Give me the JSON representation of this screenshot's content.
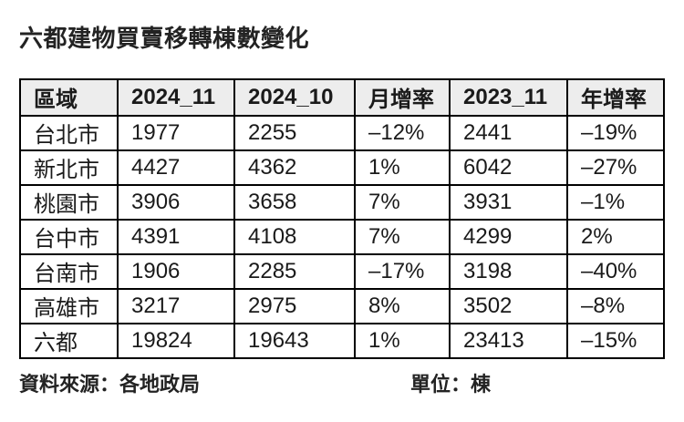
{
  "title": "六都建物買賣移轉棟數變化",
  "table": {
    "headers": [
      "區域",
      "2024_11",
      "2024_10",
      "月增率",
      "2023_11",
      "年增率"
    ],
    "rows": [
      [
        "台北市",
        "1977",
        "2255",
        "–12%",
        "2441",
        "–19%"
      ],
      [
        "新北市",
        "4427",
        "4362",
        "1%",
        "6042",
        "–27%"
      ],
      [
        "桃園市",
        "3906",
        "3658",
        "7%",
        "3931",
        "–1%"
      ],
      [
        "台中市",
        "4391",
        "4108",
        "7%",
        "4299",
        "2%"
      ],
      [
        "台南市",
        "1906",
        "2285",
        "–17%",
        "3198",
        "–40%"
      ],
      [
        "高雄市",
        "3217",
        "2975",
        "8%",
        "3502",
        "–8%"
      ],
      [
        "六都",
        "19824",
        "19643",
        "1%",
        "23413",
        "–15%"
      ]
    ]
  },
  "footer": {
    "source": "資料來源：各地政局",
    "unit": "單位：棟"
  },
  "colors": {
    "page_bg": "#ffffff",
    "header_bg": "#ededed",
    "border": "#000000",
    "text": "#1a1a1a"
  },
  "chart_data": {
    "type": "table",
    "title": "六都建物買賣移轉棟數變化",
    "columns": [
      "區域",
      "2024_11",
      "2024_10",
      "月增率",
      "2023_11",
      "年增率"
    ],
    "rows": [
      {
        "區域": "台北市",
        "2024_11": 1977,
        "2024_10": 2255,
        "月增率": "–12%",
        "2023_11": 2441,
        "年增率": "–19%"
      },
      {
        "區域": "新北市",
        "2024_11": 4427,
        "2024_10": 4362,
        "月增率": "1%",
        "2023_11": 6042,
        "年增率": "–27%"
      },
      {
        "區域": "桃園市",
        "2024_11": 3906,
        "2024_10": 3658,
        "月增率": "7%",
        "2023_11": 3931,
        "年增率": "–1%"
      },
      {
        "區域": "台中市",
        "2024_11": 4391,
        "2024_10": 4108,
        "月增率": "7%",
        "2023_11": 4299,
        "年增率": "2%"
      },
      {
        "區域": "台南市",
        "2024_11": 1906,
        "2024_10": 2285,
        "月增率": "–17%",
        "2023_11": 3198,
        "年增率": "–40%"
      },
      {
        "區域": "高雄市",
        "2024_11": 3217,
        "2024_10": 2975,
        "月增率": "8%",
        "2023_11": 3502,
        "年增率": "–8%"
      },
      {
        "區域": "六都",
        "2024_11": 19824,
        "2024_10": 19643,
        "月增率": "1%",
        "2023_11": 23413,
        "年增率": "–15%"
      }
    ],
    "source_note": "資料來源：各地政局",
    "unit_note": "單位：棟"
  }
}
